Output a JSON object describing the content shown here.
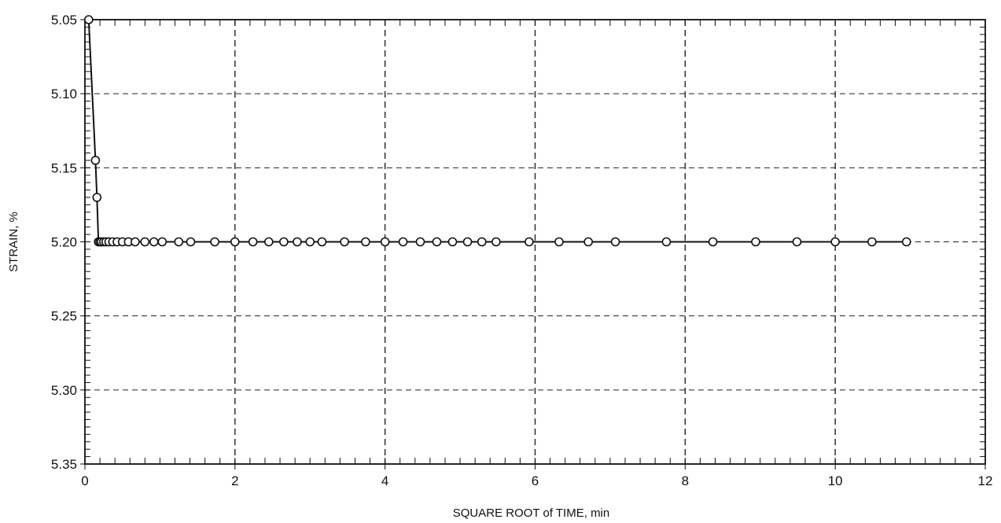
{
  "chart_data": {
    "type": "line",
    "title": "",
    "xlabel": "SQUARE ROOT of TIME, min",
    "ylabel": "STRAIN, %",
    "xlim": [
      0,
      12
    ],
    "ylim": [
      5.05,
      5.35
    ],
    "y_inverted": true,
    "grid": true,
    "x_ticks": [
      "0",
      "2",
      "4",
      "6",
      "8",
      "10",
      "12"
    ],
    "y_ticks": [
      "5.05",
      "5.10",
      "5.15",
      "5.20",
      "5.25",
      "5.30",
      "5.35"
    ],
    "series": [
      {
        "marker": "open-circle",
        "x": [
          0.05,
          0.14,
          0.16,
          0.18,
          0.2,
          0.22,
          0.25,
          0.28,
          0.32,
          0.37,
          0.43,
          0.5,
          0.58,
          0.67,
          0.8,
          0.92,
          1.03,
          1.25,
          1.41,
          1.73,
          2.0,
          2.24,
          2.45,
          2.65,
          2.83,
          3.0,
          3.16,
          3.46,
          3.74,
          4.0,
          4.24,
          4.47,
          4.69,
          4.9,
          5.1,
          5.29,
          5.48,
          5.92,
          6.32,
          6.71,
          7.07,
          7.75,
          8.37,
          8.94,
          9.49,
          10.0,
          10.49,
          10.95
        ],
        "values": [
          5.05,
          5.145,
          5.17,
          5.2,
          5.2,
          5.2,
          5.2,
          5.2,
          5.2,
          5.2,
          5.2,
          5.2,
          5.2,
          5.2,
          5.2,
          5.2,
          5.2,
          5.2,
          5.2,
          5.2,
          5.2,
          5.2,
          5.2,
          5.2,
          5.2,
          5.2,
          5.2,
          5.2,
          5.2,
          5.2,
          5.2,
          5.2,
          5.2,
          5.2,
          5.2,
          5.2,
          5.2,
          5.2,
          5.2,
          5.2,
          5.2,
          5.2,
          5.2,
          5.2,
          5.2,
          5.2,
          5.2,
          5.2
        ]
      }
    ]
  }
}
